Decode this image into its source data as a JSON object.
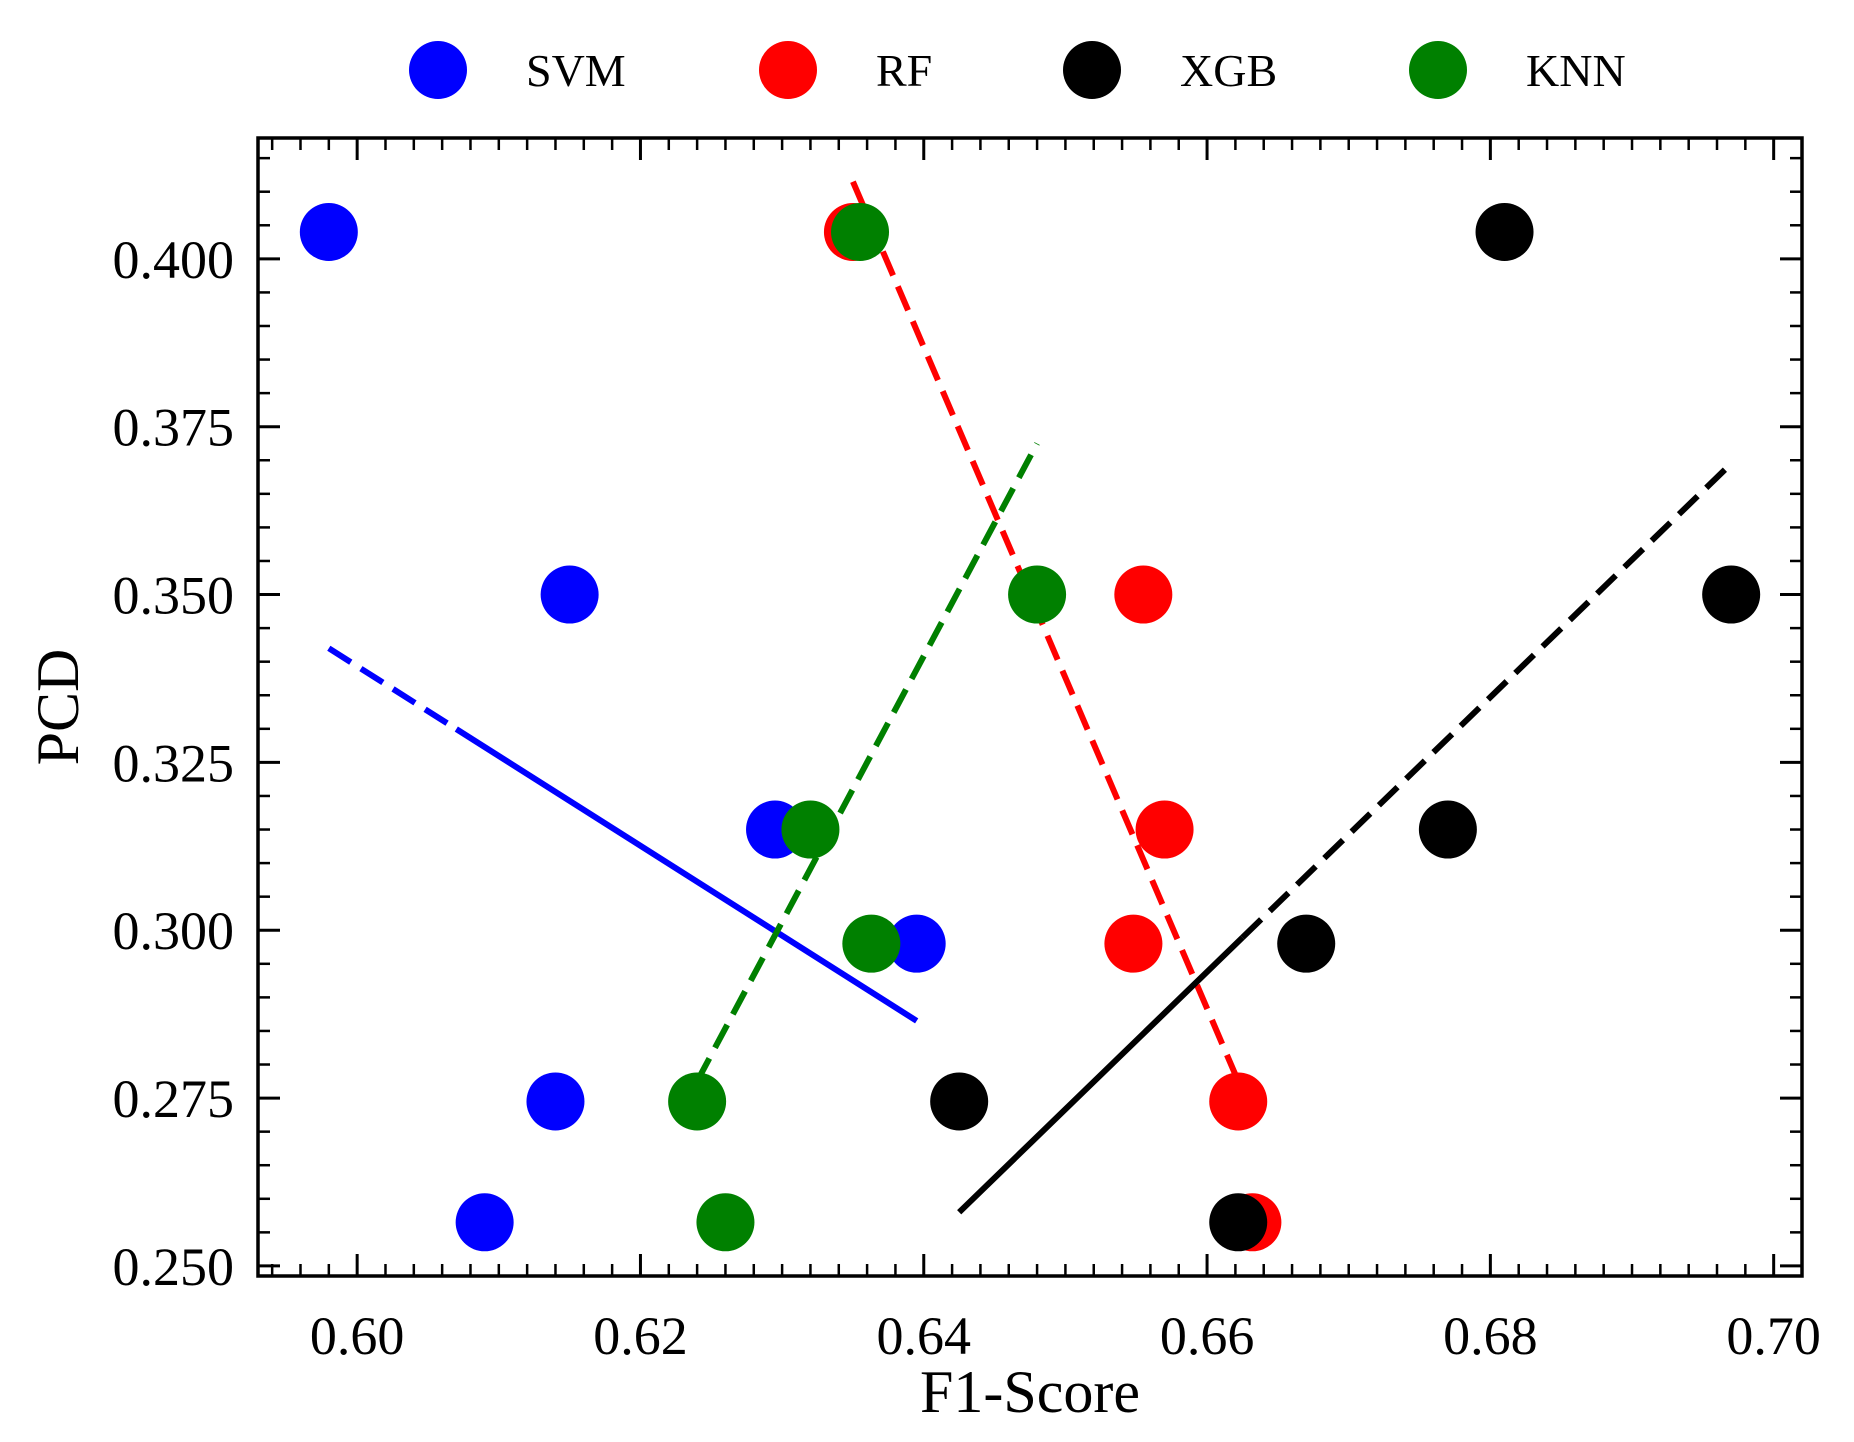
{
  "chart_data": {
    "type": "scatter",
    "title": "",
    "xlabel": "F1-Score",
    "ylabel": "PCD",
    "xlim": [
      0.593,
      0.702
    ],
    "ylim": [
      0.2485,
      0.418
    ],
    "x_ticks": [
      "0.60",
      "0.62",
      "0.64",
      "0.66",
      "0.68",
      "0.70"
    ],
    "y_ticks": [
      "0.250",
      "0.275",
      "0.300",
      "0.325",
      "0.350",
      "0.375",
      "0.400"
    ],
    "legend_position": "top-outside",
    "grid": false,
    "series": [
      {
        "name": "SVM",
        "color": "#0000ff",
        "points": [
          [
            0.598,
            0.404
          ],
          [
            0.615,
            0.35
          ],
          [
            0.6295,
            0.315
          ],
          [
            0.6395,
            0.298
          ],
          [
            0.614,
            0.2745
          ],
          [
            0.609,
            0.2565
          ]
        ],
        "trend": {
          "start": [
            0.598,
            0.342
          ],
          "end": [
            0.6395,
            0.2865
          ],
          "dashed_until_x": 0.607
        }
      },
      {
        "name": "RF",
        "color": "#ff0000",
        "points": [
          [
            0.635,
            0.404
          ],
          [
            0.6555,
            0.35
          ],
          [
            0.657,
            0.315
          ],
          [
            0.6548,
            0.298
          ],
          [
            0.6622,
            0.2745
          ],
          [
            0.6632,
            0.2565
          ]
        ],
        "trend": {
          "start": [
            0.635,
            0.4115
          ],
          "end": [
            0.6622,
            0.2775
          ],
          "dashed_until_x": 0.6622
        }
      },
      {
        "name": "XGB",
        "color": "#000000",
        "points": [
          [
            0.681,
            0.404
          ],
          [
            0.697,
            0.35
          ],
          [
            0.677,
            0.315
          ],
          [
            0.667,
            0.298
          ],
          [
            0.6425,
            0.2745
          ],
          [
            0.6622,
            0.2565
          ]
        ],
        "trend": {
          "start": [
            0.6425,
            0.258
          ],
          "end": [
            0.697,
            0.3695
          ],
          "solid_until_x": 0.6625
        }
      },
      {
        "name": "KNN",
        "color": "#008000",
        "points": [
          [
            0.6355,
            0.404
          ],
          [
            0.648,
            0.35
          ],
          [
            0.632,
            0.315
          ],
          [
            0.6363,
            0.298
          ],
          [
            0.624,
            0.2745
          ],
          [
            0.626,
            0.2565
          ]
        ],
        "trend": {
          "start": [
            0.624,
            0.2775
          ],
          "end": [
            0.648,
            0.3725
          ],
          "dashed_until_x": 0.648
        }
      }
    ]
  }
}
